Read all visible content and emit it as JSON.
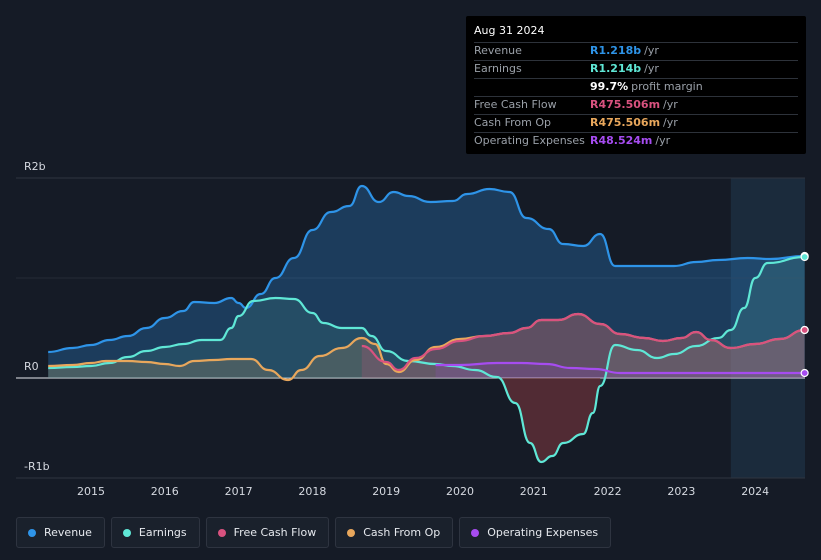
{
  "colors": {
    "revenue": "#2e94e8",
    "earnings": "#5fe7d6",
    "free_cash_flow": "#d9527f",
    "cash_from_op": "#e8a75c",
    "operating_expenses": "#a64cf0"
  },
  "tooltip": {
    "date": "Aug 31 2024",
    "rows": [
      {
        "label": "Revenue",
        "value": "R1.218b",
        "unit": "/yr",
        "color": "#2e94e8"
      },
      {
        "label": "Earnings",
        "value": "R1.214b",
        "unit": "/yr",
        "color": "#5fe7d6"
      },
      {
        "label": "",
        "value": "99.7%",
        "unit": "profit margin",
        "color": "#ffffff"
      },
      {
        "label": "Free Cash Flow",
        "value": "R475.506m",
        "unit": "/yr",
        "color": "#d9527f"
      },
      {
        "label": "Cash From Op",
        "value": "R475.506m",
        "unit": "/yr",
        "color": "#e8a75c"
      },
      {
        "label": "Operating Expenses",
        "value": "R48.524m",
        "unit": "/yr",
        "color": "#a64cf0"
      }
    ]
  },
  "legend": [
    {
      "label": "Revenue",
      "color": "#2e94e8"
    },
    {
      "label": "Earnings",
      "color": "#5fe7d6"
    },
    {
      "label": "Free Cash Flow",
      "color": "#d9527f"
    },
    {
      "label": "Cash From Op",
      "color": "#e8a75c"
    },
    {
      "label": "Operating Expenses",
      "color": "#a64cf0"
    }
  ],
  "chart_data": {
    "type": "area",
    "title": "",
    "xlabel": "",
    "ylabel": "",
    "ylim": [
      -1,
      2
    ],
    "xlim": [
      2014.4,
      2024.67
    ],
    "y_ticks": [
      {
        "value": 2,
        "label": "R2b"
      },
      {
        "value": 0,
        "label": "R0"
      },
      {
        "value": -1,
        "label": "-R1b"
      }
    ],
    "x_ticks": [
      2015,
      2016,
      2017,
      2018,
      2019,
      2020,
      2021,
      2022,
      2023,
      2024
    ],
    "highlight_start": 2023.67,
    "series": [
      {
        "name": "Revenue",
        "unit": "R billions",
        "points": [
          [
            2014.42,
            0.26
          ],
          [
            2014.75,
            0.3
          ],
          [
            2015.0,
            0.33
          ],
          [
            2015.25,
            0.38
          ],
          [
            2015.5,
            0.42
          ],
          [
            2015.75,
            0.5
          ],
          [
            2016.0,
            0.6
          ],
          [
            2016.25,
            0.67
          ],
          [
            2016.4,
            0.76
          ],
          [
            2016.67,
            0.75
          ],
          [
            2016.9,
            0.8
          ],
          [
            2017.0,
            0.75
          ],
          [
            2017.1,
            0.7
          ],
          [
            2017.3,
            0.84
          ],
          [
            2017.5,
            1.0
          ],
          [
            2017.75,
            1.2
          ],
          [
            2018.0,
            1.48
          ],
          [
            2018.25,
            1.66
          ],
          [
            2018.5,
            1.72
          ],
          [
            2018.67,
            1.92
          ],
          [
            2018.9,
            1.76
          ],
          [
            2019.1,
            1.86
          ],
          [
            2019.3,
            1.82
          ],
          [
            2019.6,
            1.76
          ],
          [
            2019.9,
            1.77
          ],
          [
            2020.1,
            1.84
          ],
          [
            2020.4,
            1.89
          ],
          [
            2020.67,
            1.86
          ],
          [
            2020.9,
            1.6
          ],
          [
            2021.2,
            1.49
          ],
          [
            2021.4,
            1.34
          ],
          [
            2021.67,
            1.32
          ],
          [
            2021.9,
            1.44
          ],
          [
            2022.1,
            1.12
          ],
          [
            2022.5,
            1.12
          ],
          [
            2022.9,
            1.12
          ],
          [
            2023.2,
            1.16
          ],
          [
            2023.5,
            1.18
          ],
          [
            2023.9,
            1.2
          ],
          [
            2024.2,
            1.19
          ],
          [
            2024.67,
            1.22
          ]
        ]
      },
      {
        "name": "Earnings",
        "unit": "R billions",
        "points": [
          [
            2014.42,
            0.1
          ],
          [
            2014.75,
            0.11
          ],
          [
            2015.0,
            0.12
          ],
          [
            2015.25,
            0.15
          ],
          [
            2015.5,
            0.21
          ],
          [
            2015.75,
            0.27
          ],
          [
            2016.0,
            0.31
          ],
          [
            2016.25,
            0.34
          ],
          [
            2016.5,
            0.38
          ],
          [
            2016.75,
            0.38
          ],
          [
            2016.9,
            0.5
          ],
          [
            2017.0,
            0.62
          ],
          [
            2017.2,
            0.77
          ],
          [
            2017.5,
            0.8
          ],
          [
            2017.75,
            0.79
          ],
          [
            2018.0,
            0.65
          ],
          [
            2018.15,
            0.55
          ],
          [
            2018.4,
            0.5
          ],
          [
            2018.67,
            0.5
          ],
          [
            2018.8,
            0.42
          ],
          [
            2019.0,
            0.27
          ],
          [
            2019.3,
            0.17
          ],
          [
            2019.67,
            0.14
          ],
          [
            2019.9,
            0.12
          ],
          [
            2020.2,
            0.08
          ],
          [
            2020.5,
            0.01
          ],
          [
            2020.75,
            -0.25
          ],
          [
            2020.95,
            -0.65
          ],
          [
            2021.1,
            -0.84
          ],
          [
            2021.25,
            -0.78
          ],
          [
            2021.4,
            -0.65
          ],
          [
            2021.67,
            -0.56
          ],
          [
            2021.8,
            -0.35
          ],
          [
            2021.9,
            -0.08
          ],
          [
            2022.1,
            0.33
          ],
          [
            2022.4,
            0.28
          ],
          [
            2022.67,
            0.2
          ],
          [
            2022.9,
            0.24
          ],
          [
            2023.2,
            0.32
          ],
          [
            2023.5,
            0.4
          ],
          [
            2023.67,
            0.48
          ],
          [
            2023.85,
            0.7
          ],
          [
            2024.0,
            1.0
          ],
          [
            2024.17,
            1.15
          ],
          [
            2024.67,
            1.21
          ]
        ]
      },
      {
        "name": "Free Cash Flow",
        "unit": "R billions",
        "points": [
          [
            2018.67,
            0.32
          ],
          [
            2019.0,
            0.16
          ],
          [
            2019.17,
            0.08
          ],
          [
            2019.4,
            0.2
          ],
          [
            2019.67,
            0.29
          ],
          [
            2020.0,
            0.37
          ],
          [
            2020.33,
            0.42
          ],
          [
            2020.67,
            0.45
          ],
          [
            2020.9,
            0.5
          ],
          [
            2021.1,
            0.58
          ],
          [
            2021.33,
            0.58
          ],
          [
            2021.6,
            0.64
          ],
          [
            2021.9,
            0.54
          ],
          [
            2022.17,
            0.44
          ],
          [
            2022.5,
            0.4
          ],
          [
            2022.75,
            0.37
          ],
          [
            2023.0,
            0.4
          ],
          [
            2023.2,
            0.46
          ],
          [
            2023.4,
            0.38
          ],
          [
            2023.67,
            0.3
          ],
          [
            2024.0,
            0.34
          ],
          [
            2024.33,
            0.39
          ],
          [
            2024.67,
            0.48
          ]
        ]
      },
      {
        "name": "Cash From Op",
        "unit": "R billions",
        "points": [
          [
            2014.42,
            0.12
          ],
          [
            2014.75,
            0.13
          ],
          [
            2015.0,
            0.15
          ],
          [
            2015.2,
            0.17
          ],
          [
            2015.5,
            0.17
          ],
          [
            2015.75,
            0.16
          ],
          [
            2016.0,
            0.14
          ],
          [
            2016.2,
            0.12
          ],
          [
            2016.4,
            0.17
          ],
          [
            2016.67,
            0.18
          ],
          [
            2016.9,
            0.19
          ],
          [
            2017.17,
            0.19
          ],
          [
            2017.4,
            0.08
          ],
          [
            2017.67,
            -0.02
          ],
          [
            2017.85,
            0.08
          ],
          [
            2018.1,
            0.22
          ],
          [
            2018.4,
            0.3
          ],
          [
            2018.67,
            0.4
          ],
          [
            2018.85,
            0.34
          ],
          [
            2019.0,
            0.14
          ],
          [
            2019.17,
            0.06
          ],
          [
            2019.4,
            0.18
          ],
          [
            2019.67,
            0.31
          ],
          [
            2020.0,
            0.39
          ],
          [
            2020.33,
            0.42
          ],
          [
            2020.67,
            0.45
          ],
          [
            2020.9,
            0.5
          ],
          [
            2021.1,
            0.58
          ],
          [
            2021.33,
            0.58
          ],
          [
            2021.6,
            0.64
          ],
          [
            2021.9,
            0.54
          ],
          [
            2022.17,
            0.44
          ],
          [
            2022.5,
            0.4
          ],
          [
            2022.75,
            0.37
          ],
          [
            2023.0,
            0.4
          ],
          [
            2023.2,
            0.46
          ],
          [
            2023.4,
            0.38
          ],
          [
            2023.67,
            0.3
          ],
          [
            2024.0,
            0.34
          ],
          [
            2024.33,
            0.39
          ],
          [
            2024.67,
            0.48
          ]
        ]
      },
      {
        "name": "Operating Expenses",
        "unit": "R billions",
        "points": [
          [
            2019.67,
            0.13
          ],
          [
            2020.0,
            0.13
          ],
          [
            2020.5,
            0.15
          ],
          [
            2020.83,
            0.15
          ],
          [
            2021.17,
            0.14
          ],
          [
            2021.5,
            0.1
          ],
          [
            2021.83,
            0.09
          ],
          [
            2022.17,
            0.05
          ],
          [
            2022.5,
            0.05
          ],
          [
            2023.0,
            0.05
          ],
          [
            2023.5,
            0.05
          ],
          [
            2024.0,
            0.05
          ],
          [
            2024.67,
            0.05
          ]
        ]
      }
    ]
  }
}
